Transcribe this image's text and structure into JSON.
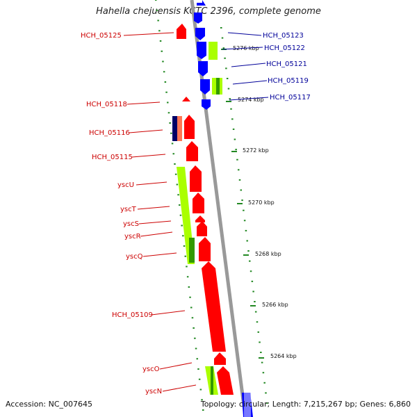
{
  "header": {
    "title": "Hahella chejuensis KCTC 2396, complete genome"
  },
  "footer": {
    "accession": "Accession: NC_007645",
    "summary": "Topology: circular; Length: 7,215,267 bp; Genes: 6,860"
  },
  "colors": {
    "forward": "#ff0000",
    "reverse": "#0000ff",
    "highlight": "#aaff00",
    "highlight_dark": "#339900",
    "navy": "#000066",
    "salmon": "#ff7755",
    "backbone": "#999999",
    "tick": "#228822",
    "left_label": "#cc0000",
    "right_label": "#000099"
  },
  "labels_left": [
    {
      "id": "HCH_05125",
      "text": "HCH_05125"
    },
    {
      "id": "HCH_05118",
      "text": "HCH_05118"
    },
    {
      "id": "HCH_05116",
      "text": "HCH_05116"
    },
    {
      "id": "HCH_05115",
      "text": "HCH_05115"
    },
    {
      "id": "yscU",
      "text": "yscU"
    },
    {
      "id": "yscT",
      "text": "yscT"
    },
    {
      "id": "yscS",
      "text": "yscS"
    },
    {
      "id": "yscR",
      "text": "yscR"
    },
    {
      "id": "yscQ",
      "text": "yscQ"
    },
    {
      "id": "HCH_05109",
      "text": "HCH_05109"
    },
    {
      "id": "yscO",
      "text": "yscO"
    },
    {
      "id": "yscN",
      "text": "yscN"
    }
  ],
  "labels_right": [
    {
      "id": "HCH_05123",
      "text": "HCH_05123"
    },
    {
      "id": "HCH_05122",
      "text": "HCH_05122"
    },
    {
      "id": "HCH_05121",
      "text": "HCH_05121"
    },
    {
      "id": "HCH_05119",
      "text": "HCH_05119"
    },
    {
      "id": "HCH_05117",
      "text": "HCH_05117"
    }
  ],
  "kbp_labels": [
    "5276 kbp",
    "5274 kbp",
    "5272 kbp",
    "5270 kbp",
    "5268 kbp",
    "5266 kbp",
    "5264 kbp"
  ]
}
